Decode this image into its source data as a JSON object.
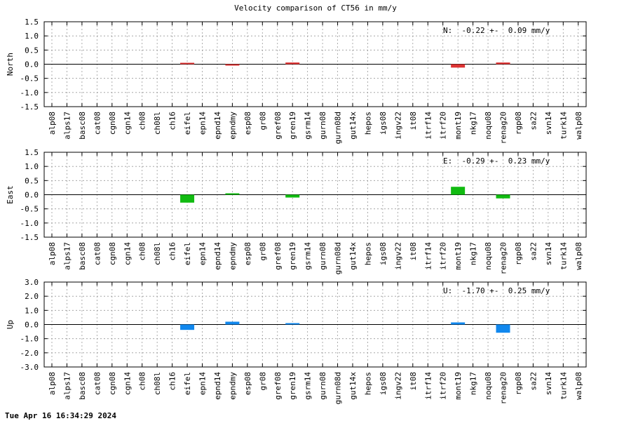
{
  "title": "Velocity comparison of CT56 in mm/y",
  "timestamp": "Tue Apr 16 16:34:29 2024",
  "colors": {
    "north": "#dd3333",
    "east": "#11bb11",
    "up": "#1188ee"
  },
  "chart_data": [
    {
      "type": "bar",
      "ylabel": "North",
      "ylim": [
        -1.5,
        1.5
      ],
      "yticks": [
        "1.5",
        "1.0",
        "0.5",
        "0.0",
        "-0.5",
        "-1.0",
        "-1.5"
      ],
      "grid": true,
      "annotation": "N:  -0.22 +-  0.09 mm/y",
      "annotation_position": "top-right",
      "color": "#dd3333",
      "categories": [
        "alp08",
        "alps17",
        "basc08",
        "cat08",
        "cgn08",
        "cgn14",
        "ch08",
        "ch08l",
        "ch16",
        "eifel",
        "epn14",
        "epnd14",
        "epndmy",
        "esp08",
        "gr08",
        "gref08",
        "gren19",
        "gsrm14",
        "gurn08",
        "gurn08d",
        "gut14x",
        "hepos",
        "igs08",
        "ingv22",
        "it08",
        "itrf14",
        "itrf20",
        "mont19",
        "nkg17",
        "noqu08",
        "renag20",
        "rgp08",
        "sa22",
        "svn14",
        "turk14",
        "walp08"
      ],
      "values": [
        0,
        0,
        0,
        0,
        0,
        0,
        0,
        0,
        0,
        0.02,
        0,
        0,
        -0.02,
        0,
        0,
        0,
        0.06,
        0,
        0,
        0,
        0,
        0,
        0,
        0,
        0,
        0,
        0,
        -0.12,
        0,
        0,
        0.06,
        0,
        0,
        0,
        0,
        0
      ]
    },
    {
      "type": "bar",
      "ylabel": "East",
      "ylim": [
        -1.5,
        1.5
      ],
      "yticks": [
        "1.5",
        "1.0",
        "0.5",
        "0.0",
        "-0.5",
        "-1.0",
        "-1.5"
      ],
      "grid": true,
      "annotation": "E:  -0.29 +-  0.23 mm/y",
      "annotation_position": "top-right",
      "color": "#11bb11",
      "categories": [
        "alp08",
        "alps17",
        "basc08",
        "cat08",
        "cgn08",
        "cgn14",
        "ch08",
        "ch08l",
        "ch16",
        "eifel",
        "epn14",
        "epnd14",
        "epndmy",
        "esp08",
        "gr08",
        "gref08",
        "gren19",
        "gsrm14",
        "gurn08",
        "gurn08d",
        "gut14x",
        "hepos",
        "igs08",
        "ingv22",
        "it08",
        "itrf14",
        "itrf20",
        "mont19",
        "nkg17",
        "noqu08",
        "renag20",
        "rgp08",
        "sa22",
        "svn14",
        "turk14",
        "walp08"
      ],
      "values": [
        0,
        0,
        0,
        0,
        0,
        0,
        0,
        0,
        0,
        -0.28,
        0,
        0,
        0.02,
        0,
        0,
        0,
        -0.1,
        0,
        0,
        0,
        0,
        0,
        0,
        0,
        0,
        0,
        0,
        0.28,
        0,
        0,
        -0.13,
        0,
        0,
        0,
        0,
        0
      ]
    },
    {
      "type": "bar",
      "ylabel": "Up",
      "ylim": [
        -3.0,
        3.0
      ],
      "yticks": [
        "3.0",
        "2.0",
        "1.0",
        "0.0",
        "-1.0",
        "-2.0",
        "-3.0"
      ],
      "grid": true,
      "annotation": "U:  -1.70 +-  0.25 mm/y",
      "annotation_position": "top-right",
      "color": "#1188ee",
      "categories": [
        "alp08",
        "alps17",
        "basc08",
        "cat08",
        "cgn08",
        "cgn14",
        "ch08",
        "ch08l",
        "ch16",
        "eifel",
        "epn14",
        "epnd14",
        "epndmy",
        "esp08",
        "gr08",
        "gref08",
        "gren19",
        "gsrm14",
        "gurn08",
        "gurn08d",
        "gut14x",
        "hepos",
        "igs08",
        "ingv22",
        "it08",
        "itrf14",
        "itrf20",
        "mont19",
        "nkg17",
        "noqu08",
        "renag20",
        "rgp08",
        "sa22",
        "svn14",
        "turk14",
        "walp08"
      ],
      "values": [
        0,
        0,
        0,
        0,
        0,
        0,
        0,
        0,
        0,
        -0.38,
        0,
        0,
        0.2,
        0,
        0,
        0,
        0.05,
        0,
        0,
        0,
        0,
        0,
        0,
        0,
        0,
        0,
        0,
        0.15,
        0,
        0,
        -0.58,
        0,
        0,
        0,
        0,
        0
      ]
    }
  ]
}
